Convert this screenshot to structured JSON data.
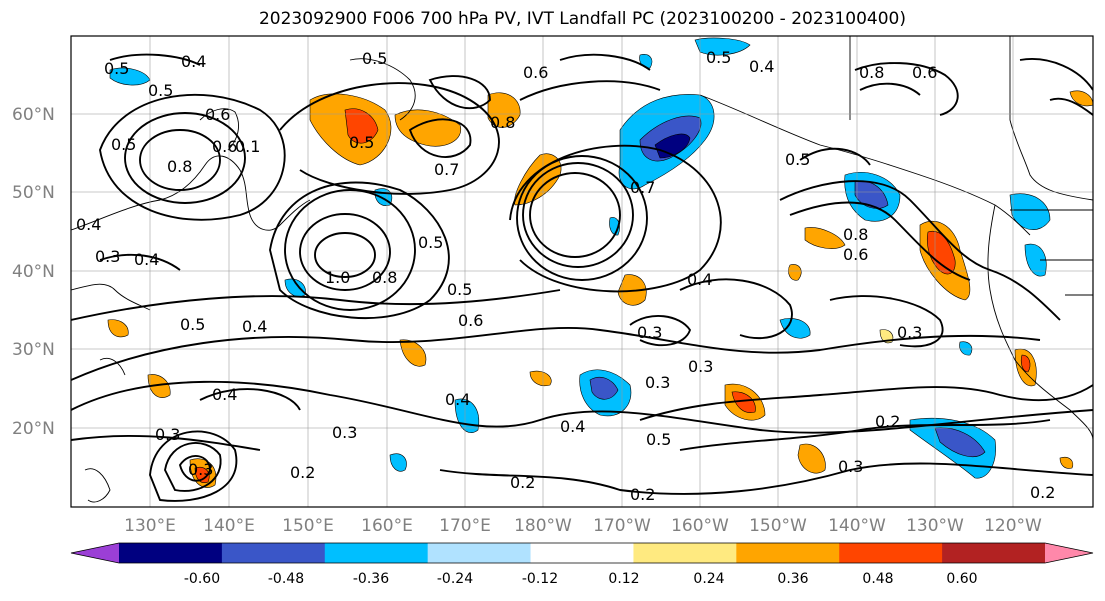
{
  "title": "2023092900 F006 700 hPa PV, IVT Landfall PC (2023100200 - 2023100400)",
  "lat_labels": [
    "60°N",
    "50°N",
    "40°N",
    "30°N",
    "20°N"
  ],
  "lon_labels": [
    "130°E",
    "140°E",
    "150°E",
    "160°E",
    "170°E",
    "180°W",
    "170°W",
    "160°W",
    "150°W",
    "140°W",
    "130°W",
    "120°W"
  ],
  "colorbar": {
    "colors": [
      "#9b3fd6",
      "#000080",
      "#3a56c8",
      "#00bfff",
      "#b0e2ff",
      "#ffffff",
      "#ffea80",
      "#ffa500",
      "#ff4500",
      "#b22222",
      "#ff88aa"
    ],
    "tick_labels": [
      "-0.60",
      "-0.48",
      "-0.36",
      "-0.24",
      "-0.12",
      "0.12",
      "0.24",
      "0.36",
      "0.48",
      "0.60"
    ]
  },
  "contour_labels": [
    "0.5",
    "0.4",
    "0.5",
    "0.6",
    "0.5",
    "0.4",
    "0.1",
    "0.8",
    "0.6",
    "0.5",
    "0.6",
    "0.5",
    "0.8",
    "0.7",
    "0.7",
    "0.5",
    "0.8",
    "0.5",
    "0.4",
    "0.8",
    "0.6",
    "0.6",
    "0.4",
    "0.3",
    "0.4",
    "1.0",
    "0.8",
    "0.5",
    "0.5",
    "0.3",
    "0.4",
    "0.5",
    "0.4",
    "0.6",
    "0.3",
    "0.3",
    "0.3",
    "0.3",
    "0.4",
    "0.3",
    "0.2",
    "0.4",
    "0.5",
    "0.3",
    "0.2",
    "0.3",
    "0.2",
    "0.2",
    "0.2"
  ]
}
